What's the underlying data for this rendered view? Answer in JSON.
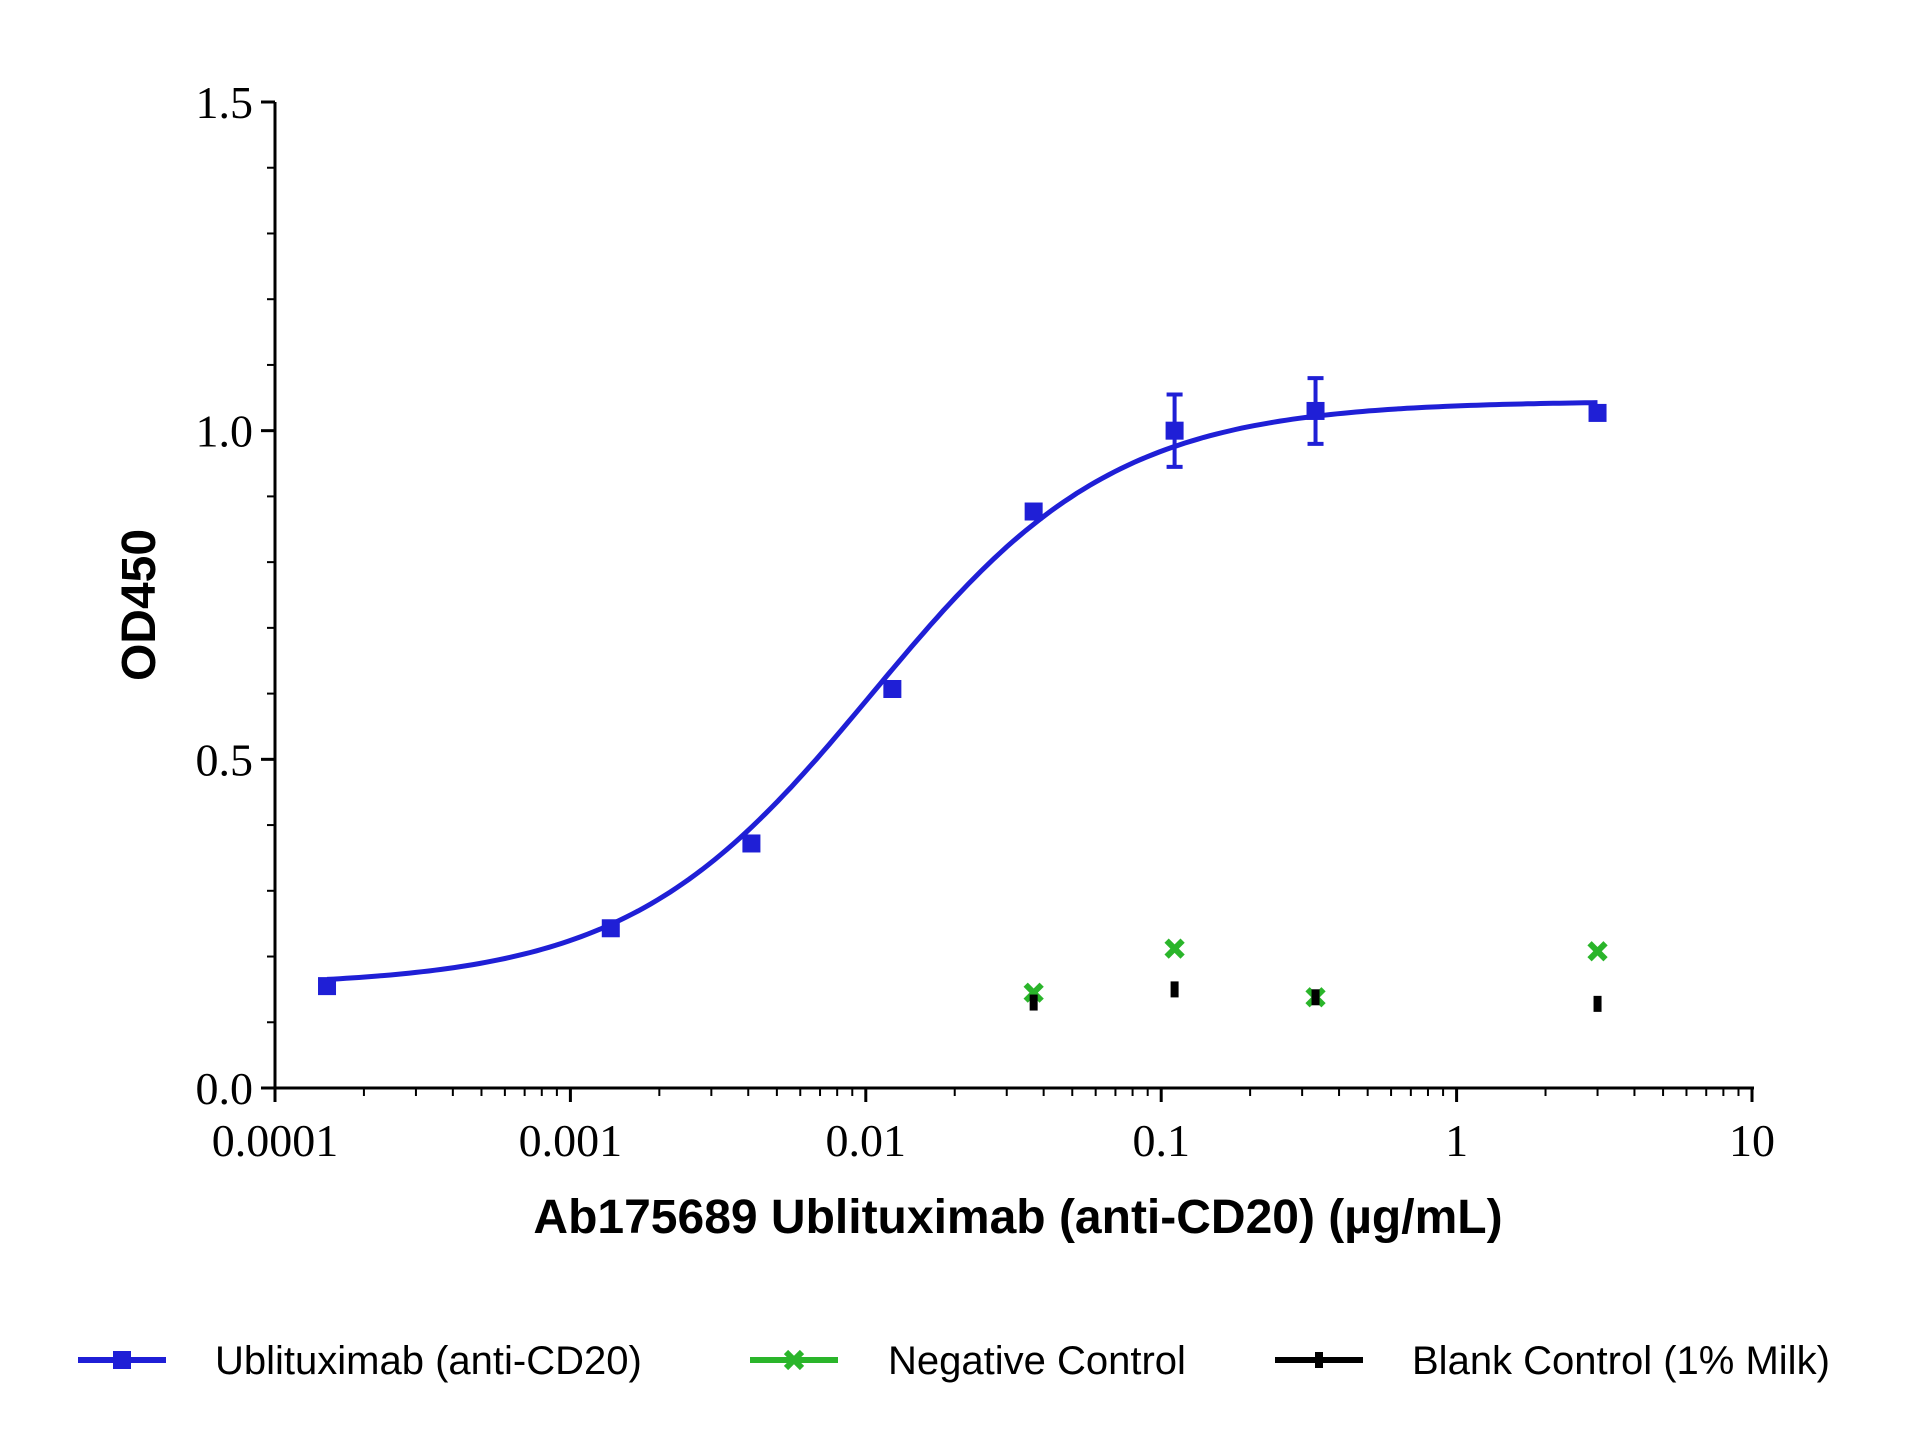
{
  "chart_data": {
    "type": "scatter",
    "xscale": "log",
    "xlim": [
      0.0001,
      10
    ],
    "ylim": [
      0,
      1.5
    ],
    "xlabel": "Ab175689 Ublituximab (anti-CD20) (µg/mL)",
    "ylabel": "OD450",
    "x_ticks": [
      "0.0001",
      "0.001",
      "0.01",
      "0.1",
      "1",
      "10"
    ],
    "y_ticks": [
      "0.0",
      "0.5",
      "1.0",
      "1.5"
    ],
    "legend_position": "bottom",
    "series": [
      {
        "name": "Ublituximab (anti-CD20)",
        "color": "#1f1fd6",
        "marker": "square",
        "fit": "sigmoid",
        "x": [
          0.00015,
          0.00137,
          0.0041,
          0.0123,
          0.037,
          0.111,
          0.333,
          3.0
        ],
        "y": [
          0.155,
          0.243,
          0.372,
          0.607,
          0.877,
          1.0,
          1.03,
          1.027
        ],
        "err": [
          0,
          0,
          0,
          0,
          0.01,
          0.055,
          0.05,
          0
        ]
      },
      {
        "name": "Negative Control",
        "color": "#2ab52a",
        "marker": "x",
        "x": [
          0.037,
          0.111,
          0.333,
          3.0
        ],
        "y": [
          0.145,
          0.212,
          0.138,
          0.208
        ]
      },
      {
        "name": "Blank Control (1% Milk)",
        "color": "#000000",
        "marker": "dash",
        "x": [
          0.037,
          0.111,
          0.333,
          3.0
        ],
        "y": [
          0.13,
          0.15,
          0.138,
          0.128
        ]
      }
    ]
  }
}
